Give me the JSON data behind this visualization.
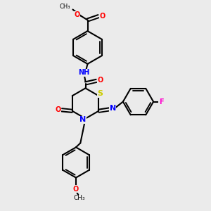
{
  "bg_color": "#ebebeb",
  "atom_colors": {
    "O": "#ff0000",
    "N": "#0000ff",
    "S": "#cccc00",
    "F": "#ff00cc",
    "NH": "#0000ff",
    "C": "#000000"
  }
}
